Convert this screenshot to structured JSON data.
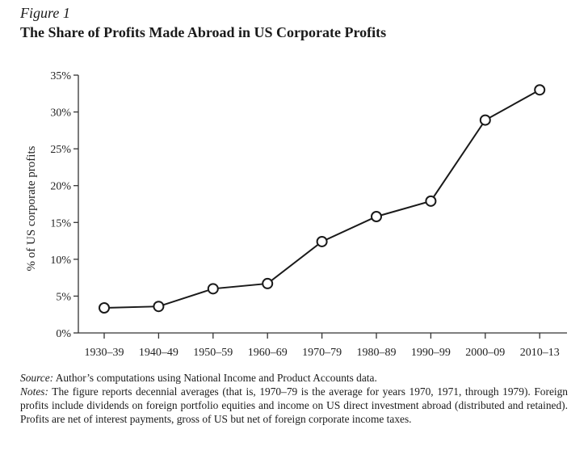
{
  "figure": {
    "label": "Figure 1",
    "title": "The Share of Profits Made Abroad in US Corporate Profits"
  },
  "chart_data": {
    "type": "line",
    "title": "The Share of Profits Made Abroad in US Corporate Profits",
    "xlabel": "",
    "ylabel": "% of US corporate profits",
    "categories": [
      "1930–39",
      "1940–49",
      "1950–59",
      "1960–69",
      "1970–79",
      "1980–89",
      "1990–99",
      "2000–09",
      "2010–13"
    ],
    "series": [
      {
        "name": "Share of profits made abroad",
        "values": [
          3.4,
          3.6,
          6.0,
          6.7,
          12.4,
          15.8,
          17.9,
          28.9,
          33.0
        ]
      }
    ],
    "ylim": [
      0,
      35
    ],
    "yticks": [
      0,
      5,
      10,
      15,
      20,
      25,
      30,
      35
    ],
    "ytick_labels": [
      "0%",
      "5%",
      "10%",
      "15%",
      "20%",
      "25%",
      "30%",
      "35%"
    ],
    "grid": false,
    "marker": "open-circle",
    "line_color": "#1a1a1a"
  },
  "notes": {
    "source_label": "Source:",
    "source_text": " Author’s computations using National Income and Product Accounts data.",
    "notes_label": "Notes:",
    "notes_text": " The figure reports decennial averages (that is, 1970–79 is the average for years 1970, 1971, through 1979). Foreign profits include dividends on foreign portfolio equities and income on US direct investment abroad (distributed and retained). Profits are net of interest payments, gross of US but net of foreign corporate income taxes."
  }
}
